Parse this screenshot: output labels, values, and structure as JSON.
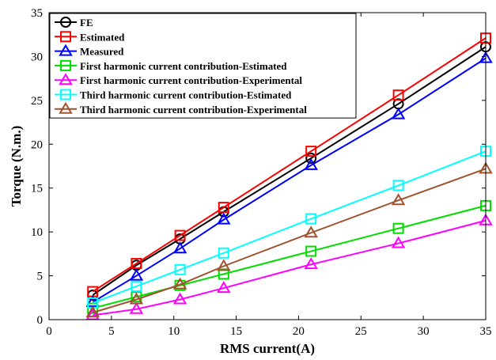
{
  "chart_data": {
    "type": "line",
    "xlabel": "RMS current(A)",
    "ylabel": "Torque (N.m.)",
    "xlim": [
      0,
      35
    ],
    "ylim": [
      0,
      35
    ],
    "xticks": [
      0,
      5,
      10,
      15,
      20,
      25,
      30,
      35
    ],
    "yticks": [
      0,
      5,
      10,
      15,
      20,
      25,
      30,
      35
    ],
    "grid": false,
    "legend_position": "top-left",
    "x": [
      3.5,
      7,
      10.5,
      14,
      21,
      28,
      35
    ],
    "series": [
      {
        "name": "FE",
        "color": "#000000",
        "marker": "circle",
        "values": [
          2.8,
          6.2,
          9.2,
          12.3,
          18.4,
          24.6,
          31.1
        ]
      },
      {
        "name": "Estimated",
        "color": "#ff0000",
        "marker": "square",
        "values": [
          3.2,
          6.4,
          9.6,
          12.8,
          19.2,
          25.6,
          32.1
        ]
      },
      {
        "name": "Measured",
        "color": "#0000ff",
        "marker": "triangle",
        "values": [
          2.0,
          5.0,
          8.1,
          11.4,
          17.6,
          23.4,
          29.8
        ]
      },
      {
        "name": "First harmonic current contribution-Estimated",
        "color": "#00dd00",
        "marker": "square",
        "values": [
          1.3,
          2.6,
          3.9,
          5.2,
          7.8,
          10.4,
          13.0
        ]
      },
      {
        "name": "First harmonic current contribution-Experimental",
        "color": "#ff00ff",
        "marker": "triangle",
        "values": [
          0.5,
          1.2,
          2.3,
          3.6,
          6.3,
          8.7,
          11.3
        ]
      },
      {
        "name": "Third harmonic current contribution-Estimated",
        "color": "#00ffff",
        "marker": "square",
        "values": [
          1.9,
          3.8,
          5.7,
          7.6,
          11.5,
          15.3,
          19.2
        ]
      },
      {
        "name": "Third harmonic current contribution-Experimental",
        "color": "#a0522d",
        "marker": "triangle",
        "values": [
          0.8,
          2.3,
          4.0,
          6.1,
          9.9,
          13.6,
          17.2
        ]
      }
    ]
  }
}
